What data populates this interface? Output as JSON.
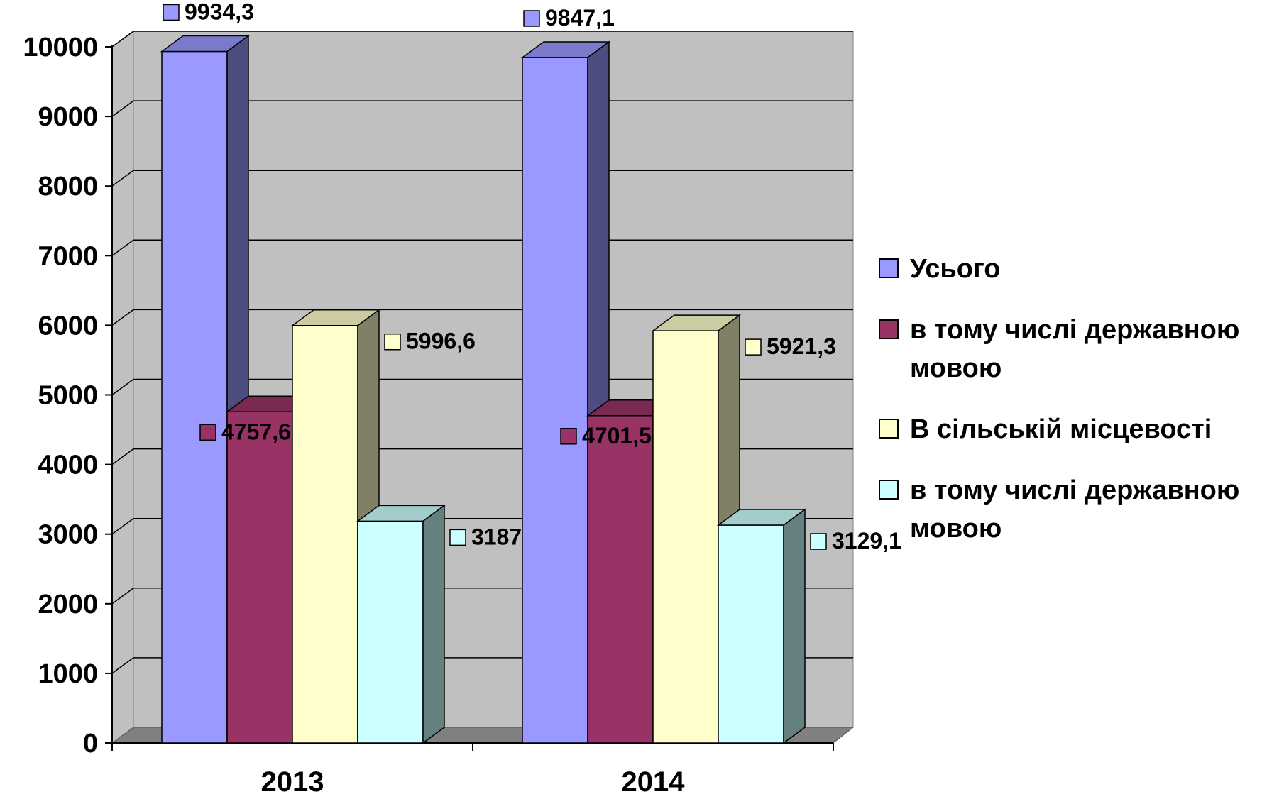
{
  "chart_data": {
    "type": "bar",
    "categories": [
      "2013",
      "2014"
    ],
    "series": [
      {
        "name": "Усього",
        "color": "#9999ff",
        "values": [
          9934.3,
          9847.1
        ],
        "labels": [
          "9934,3",
          "9847,1"
        ]
      },
      {
        "name": "в тому числі державною мовою",
        "color": "#993366",
        "values": [
          4757.6,
          4701.5
        ],
        "labels": [
          "4757,6",
          "4701,5"
        ]
      },
      {
        "name": "В сільській місцевості",
        "color": "#ffffcc",
        "values": [
          5996.6,
          5921.3
        ],
        "labels": [
          "5996,6",
          "5921,3"
        ]
      },
      {
        "name": "в тому числі державною мовою",
        "color": "#ccffff",
        "values": [
          3187,
          3129.1
        ],
        "labels": [
          "3187",
          "3129,1"
        ]
      }
    ],
    "ylim": [
      0,
      10000
    ],
    "yticks": [
      0,
      1000,
      2000,
      3000,
      4000,
      5000,
      6000,
      7000,
      8000,
      9000,
      10000
    ],
    "grid": true,
    "legend_position": "right",
    "wall_color": "#c0c0c0",
    "floor_color": "#808080"
  }
}
